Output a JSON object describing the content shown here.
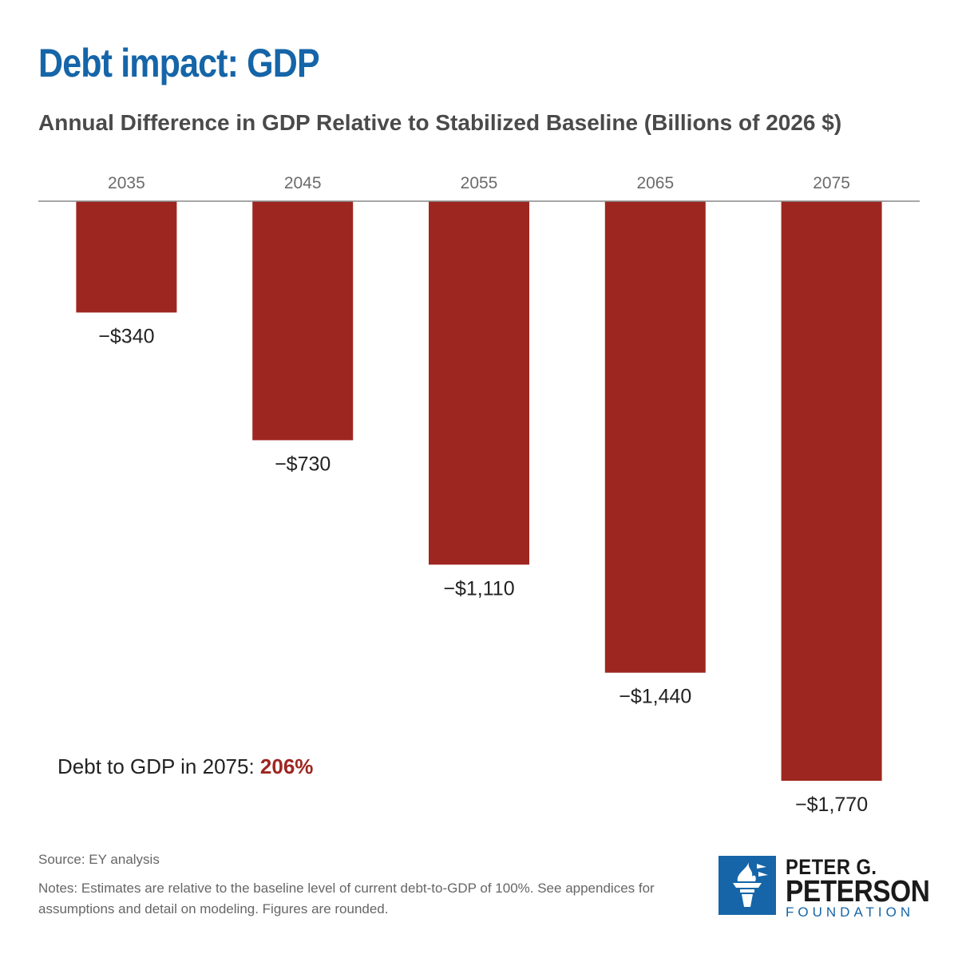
{
  "title": "Debt impact: GDP",
  "subtitle": "Annual Difference in GDP Relative to Stabilized Baseline (Billions of 2026 $)",
  "colors": {
    "title": "#1565a8",
    "bar": "#9e2620",
    "axis": "#8a8a8a",
    "highlight": "#9e2620"
  },
  "chart_data": {
    "type": "bar",
    "title": "Annual Difference in GDP Relative to Stabilized Baseline (Billions of 2026 $)",
    "categories": [
      "2035",
      "2045",
      "2055",
      "2065",
      "2075"
    ],
    "values": [
      -340,
      -730,
      -1110,
      -1440,
      -1770
    ],
    "data_labels": [
      "−$340",
      "−$730",
      "−$1,110",
      "−$1,440",
      "−$1,770"
    ],
    "xaxis_position": "top",
    "ylim": [
      -1770,
      0
    ],
    "grid": false,
    "legend": "none"
  },
  "callout": {
    "label": "Debt to GDP in 2075: ",
    "value": "206%"
  },
  "source": "Source: EY analysis",
  "notes": "Notes: Estimates are relative to the baseline level of current debt-to-GDP of 100%. See appendices for assumptions and detail on modeling. Figures are rounded.",
  "logo": {
    "line1": "PETER G.",
    "line2": "PETERSON",
    "line3": "FOUNDATION",
    "icon": "torch-icon"
  }
}
